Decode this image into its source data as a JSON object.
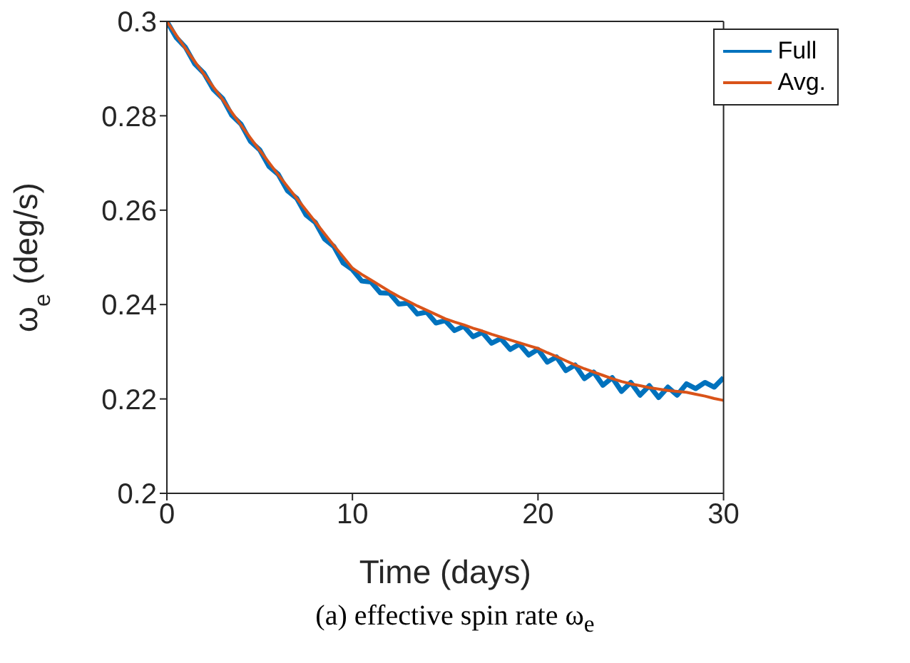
{
  "chart_data": {
    "type": "line",
    "xlabel": "Time (days)",
    "ylabel": "ω$_{e}$ (deg/s)",
    "annotations": [
      "(a) effective spin rate ω$_{e}$"
    ],
    "x": [
      0,
      0.5,
      1,
      1.5,
      2,
      2.5,
      3,
      3.5,
      4,
      4.5,
      5,
      5.5,
      6,
      6.5,
      7,
      7.5,
      8,
      8.5,
      9,
      9.5,
      10,
      10.5,
      11,
      11.5,
      12,
      12.5,
      13,
      13.5,
      14,
      14.5,
      15,
      15.5,
      16,
      16.5,
      17,
      17.5,
      18,
      18.5,
      19,
      19.5,
      20,
      20.5,
      21,
      21.5,
      22,
      22.5,
      23,
      23.5,
      24,
      24.5,
      25,
      25.5,
      26,
      26.5,
      27,
      27.5,
      28,
      28.5,
      29,
      29.5,
      30
    ],
    "series": [
      {
        "name": "Full",
        "color": "#0072bd",
        "values": [
          0.3,
          0.2966,
          0.2945,
          0.291,
          0.289,
          0.2856,
          0.2837,
          0.2801,
          0.2782,
          0.2746,
          0.2728,
          0.2693,
          0.2676,
          0.2641,
          0.2625,
          0.259,
          0.2574,
          0.2539,
          0.2523,
          0.2488,
          0.2474,
          0.245,
          0.2448,
          0.2425,
          0.2424,
          0.2401,
          0.2403,
          0.238,
          0.2384,
          0.2361,
          0.2366,
          0.2345,
          0.2354,
          0.2332,
          0.2341,
          0.2318,
          0.2328,
          0.2305,
          0.2316,
          0.2293,
          0.2305,
          0.2278,
          0.2289,
          0.226,
          0.2272,
          0.2243,
          0.2257,
          0.2229,
          0.2245,
          0.2216,
          0.2235,
          0.2208,
          0.2228,
          0.2203,
          0.2225,
          0.2208,
          0.2232,
          0.2222,
          0.2235,
          0.2225,
          0.2245
        ]
      },
      {
        "name": "Avg.",
        "color": "#d95319",
        "values": [
          0.3,
          0.2971,
          0.2943,
          0.2915,
          0.2888,
          0.2861,
          0.2835,
          0.2807,
          0.278,
          0.2753,
          0.2727,
          0.2701,
          0.2675,
          0.265,
          0.2625,
          0.26,
          0.2575,
          0.255,
          0.2525,
          0.2501,
          0.2477,
          0.2464,
          0.2452,
          0.244,
          0.2428,
          0.2417,
          0.2407,
          0.2397,
          0.2388,
          0.2379,
          0.237,
          0.2363,
          0.2357,
          0.235,
          0.2344,
          0.2337,
          0.2331,
          0.2325,
          0.2319,
          0.2313,
          0.2307,
          0.2298,
          0.229,
          0.2281,
          0.2272,
          0.2264,
          0.2257,
          0.225,
          0.2243,
          0.2237,
          0.2232,
          0.2228,
          0.2224,
          0.2221,
          0.2218,
          0.2216,
          0.2214,
          0.221,
          0.2206,
          0.2201,
          0.2197
        ]
      }
    ],
    "xlim": [
      0,
      30
    ],
    "xticks": [
      0,
      10,
      20,
      30
    ],
    "ylim": [
      0.2,
      0.3
    ],
    "yticks": [
      0.2,
      0.22,
      0.24,
      0.26,
      0.28,
      0.3
    ],
    "legend": "top right",
    "grid": false,
    "marker": "none",
    "line_style": "solid"
  }
}
